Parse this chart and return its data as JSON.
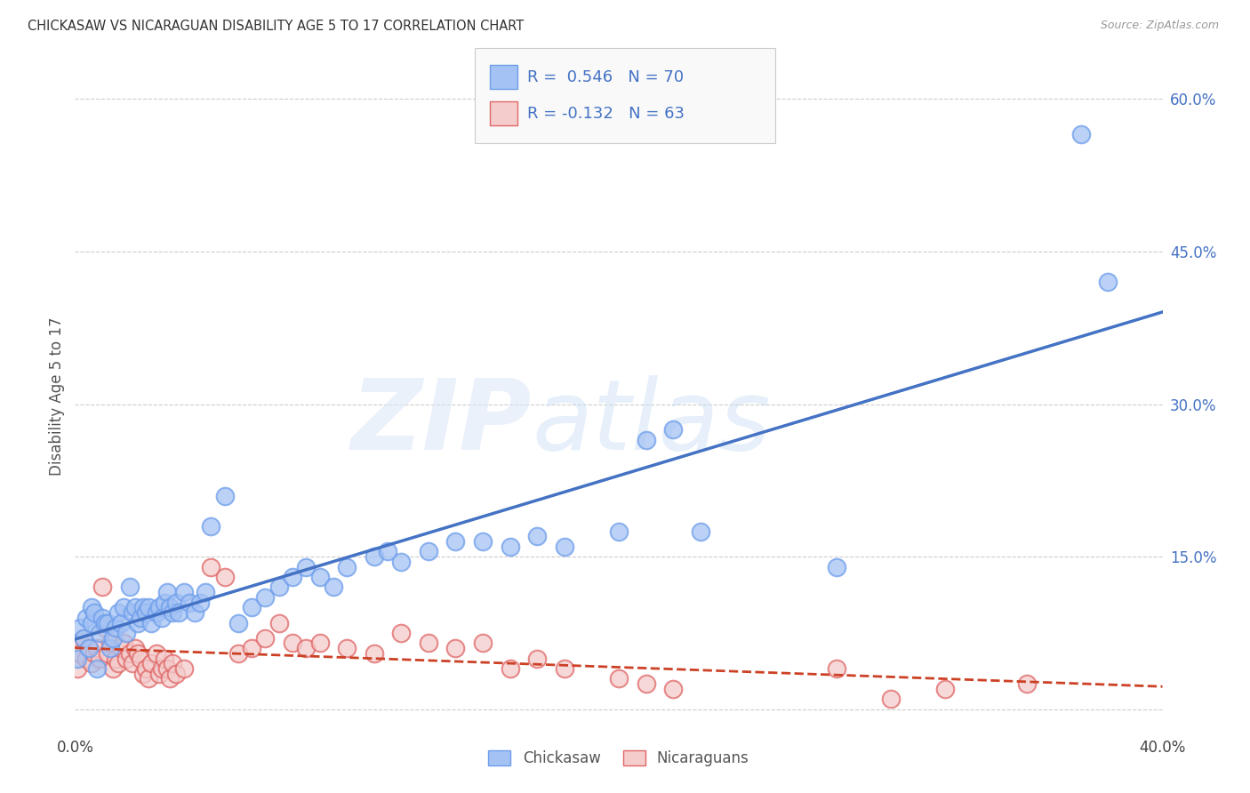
{
  "title": "CHICKASAW VS NICARAGUAN DISABILITY AGE 5 TO 17 CORRELATION CHART",
  "source": "Source: ZipAtlas.com",
  "ylabel": "Disability Age 5 to 17",
  "xlim": [
    0.0,
    0.4
  ],
  "ylim": [
    -0.02,
    0.635
  ],
  "legend_labels": [
    "Chickasaw",
    "Nicaraguans"
  ],
  "chickasaw_fill": "#a4c2f4",
  "chickasaw_edge": "#6d9eeb",
  "nicaraguan_fill": "#f4cccc",
  "nicaraguan_edge": "#e06666",
  "chickasaw_line_color": "#4472c4",
  "nicaraguan_line_color": "#cc4125",
  "R_chickasaw": 0.546,
  "N_chickasaw": 70,
  "R_nicaraguan": -0.132,
  "N_nicaraguan": 63,
  "watermark_zip": "ZIP",
  "watermark_atlas": "atlas",
  "background_color": "#ffffff",
  "grid_color": "#cccccc",
  "x_tick_positions": [
    0.0,
    0.1,
    0.2,
    0.3,
    0.4
  ],
  "x_tick_labels": [
    "0.0%",
    "",
    "",
    "",
    "40.0%"
  ],
  "y_tick_positions": [
    0.0,
    0.15,
    0.3,
    0.45,
    0.6
  ],
  "y_tick_labels": [
    "",
    "15.0%",
    "30.0%",
    "45.0%",
    "60.0%"
  ],
  "chickasaw_scatter_x": [
    0.001,
    0.002,
    0.003,
    0.004,
    0.005,
    0.006,
    0.006,
    0.007,
    0.008,
    0.009,
    0.01,
    0.011,
    0.012,
    0.013,
    0.014,
    0.015,
    0.016,
    0.017,
    0.018,
    0.019,
    0.02,
    0.021,
    0.022,
    0.023,
    0.024,
    0.025,
    0.026,
    0.027,
    0.028,
    0.03,
    0.031,
    0.032,
    0.033,
    0.034,
    0.035,
    0.036,
    0.037,
    0.038,
    0.04,
    0.042,
    0.044,
    0.046,
    0.048,
    0.05,
    0.055,
    0.06,
    0.065,
    0.07,
    0.075,
    0.08,
    0.085,
    0.09,
    0.095,
    0.1,
    0.11,
    0.115,
    0.12,
    0.13,
    0.14,
    0.15,
    0.16,
    0.17,
    0.18,
    0.2,
    0.21,
    0.22,
    0.23,
    0.28,
    0.37,
    0.38
  ],
  "chickasaw_scatter_y": [
    0.05,
    0.08,
    0.07,
    0.09,
    0.06,
    0.085,
    0.1,
    0.095,
    0.04,
    0.075,
    0.09,
    0.085,
    0.085,
    0.06,
    0.07,
    0.08,
    0.095,
    0.085,
    0.1,
    0.075,
    0.12,
    0.095,
    0.1,
    0.085,
    0.09,
    0.1,
    0.095,
    0.1,
    0.085,
    0.095,
    0.1,
    0.09,
    0.105,
    0.115,
    0.1,
    0.095,
    0.105,
    0.095,
    0.115,
    0.105,
    0.095,
    0.105,
    0.115,
    0.18,
    0.21,
    0.085,
    0.1,
    0.11,
    0.12,
    0.13,
    0.14,
    0.13,
    0.12,
    0.14,
    0.15,
    0.155,
    0.145,
    0.155,
    0.165,
    0.165,
    0.16,
    0.17,
    0.16,
    0.175,
    0.265,
    0.275,
    0.175,
    0.14,
    0.565,
    0.42
  ],
  "nicaraguan_scatter_x": [
    0.0,
    0.001,
    0.002,
    0.003,
    0.004,
    0.005,
    0.006,
    0.007,
    0.008,
    0.009,
    0.01,
    0.011,
    0.012,
    0.013,
    0.014,
    0.015,
    0.016,
    0.017,
    0.018,
    0.019,
    0.02,
    0.021,
    0.022,
    0.023,
    0.024,
    0.025,
    0.026,
    0.027,
    0.028,
    0.03,
    0.031,
    0.032,
    0.033,
    0.034,
    0.035,
    0.036,
    0.037,
    0.04,
    0.05,
    0.055,
    0.06,
    0.065,
    0.07,
    0.075,
    0.08,
    0.085,
    0.09,
    0.1,
    0.11,
    0.12,
    0.13,
    0.14,
    0.15,
    0.16,
    0.17,
    0.18,
    0.2,
    0.21,
    0.22,
    0.28,
    0.3,
    0.32,
    0.35
  ],
  "nicaraguan_scatter_y": [
    0.065,
    0.04,
    0.055,
    0.07,
    0.05,
    0.06,
    0.045,
    0.055,
    0.06,
    0.05,
    0.12,
    0.08,
    0.055,
    0.065,
    0.04,
    0.05,
    0.045,
    0.06,
    0.065,
    0.05,
    0.055,
    0.045,
    0.06,
    0.055,
    0.05,
    0.035,
    0.04,
    0.03,
    0.045,
    0.055,
    0.035,
    0.04,
    0.05,
    0.04,
    0.03,
    0.045,
    0.035,
    0.04,
    0.14,
    0.13,
    0.055,
    0.06,
    0.07,
    0.085,
    0.065,
    0.06,
    0.065,
    0.06,
    0.055,
    0.075,
    0.065,
    0.06,
    0.065,
    0.04,
    0.05,
    0.04,
    0.03,
    0.025,
    0.02,
    0.04,
    0.01,
    0.02,
    0.025
  ]
}
